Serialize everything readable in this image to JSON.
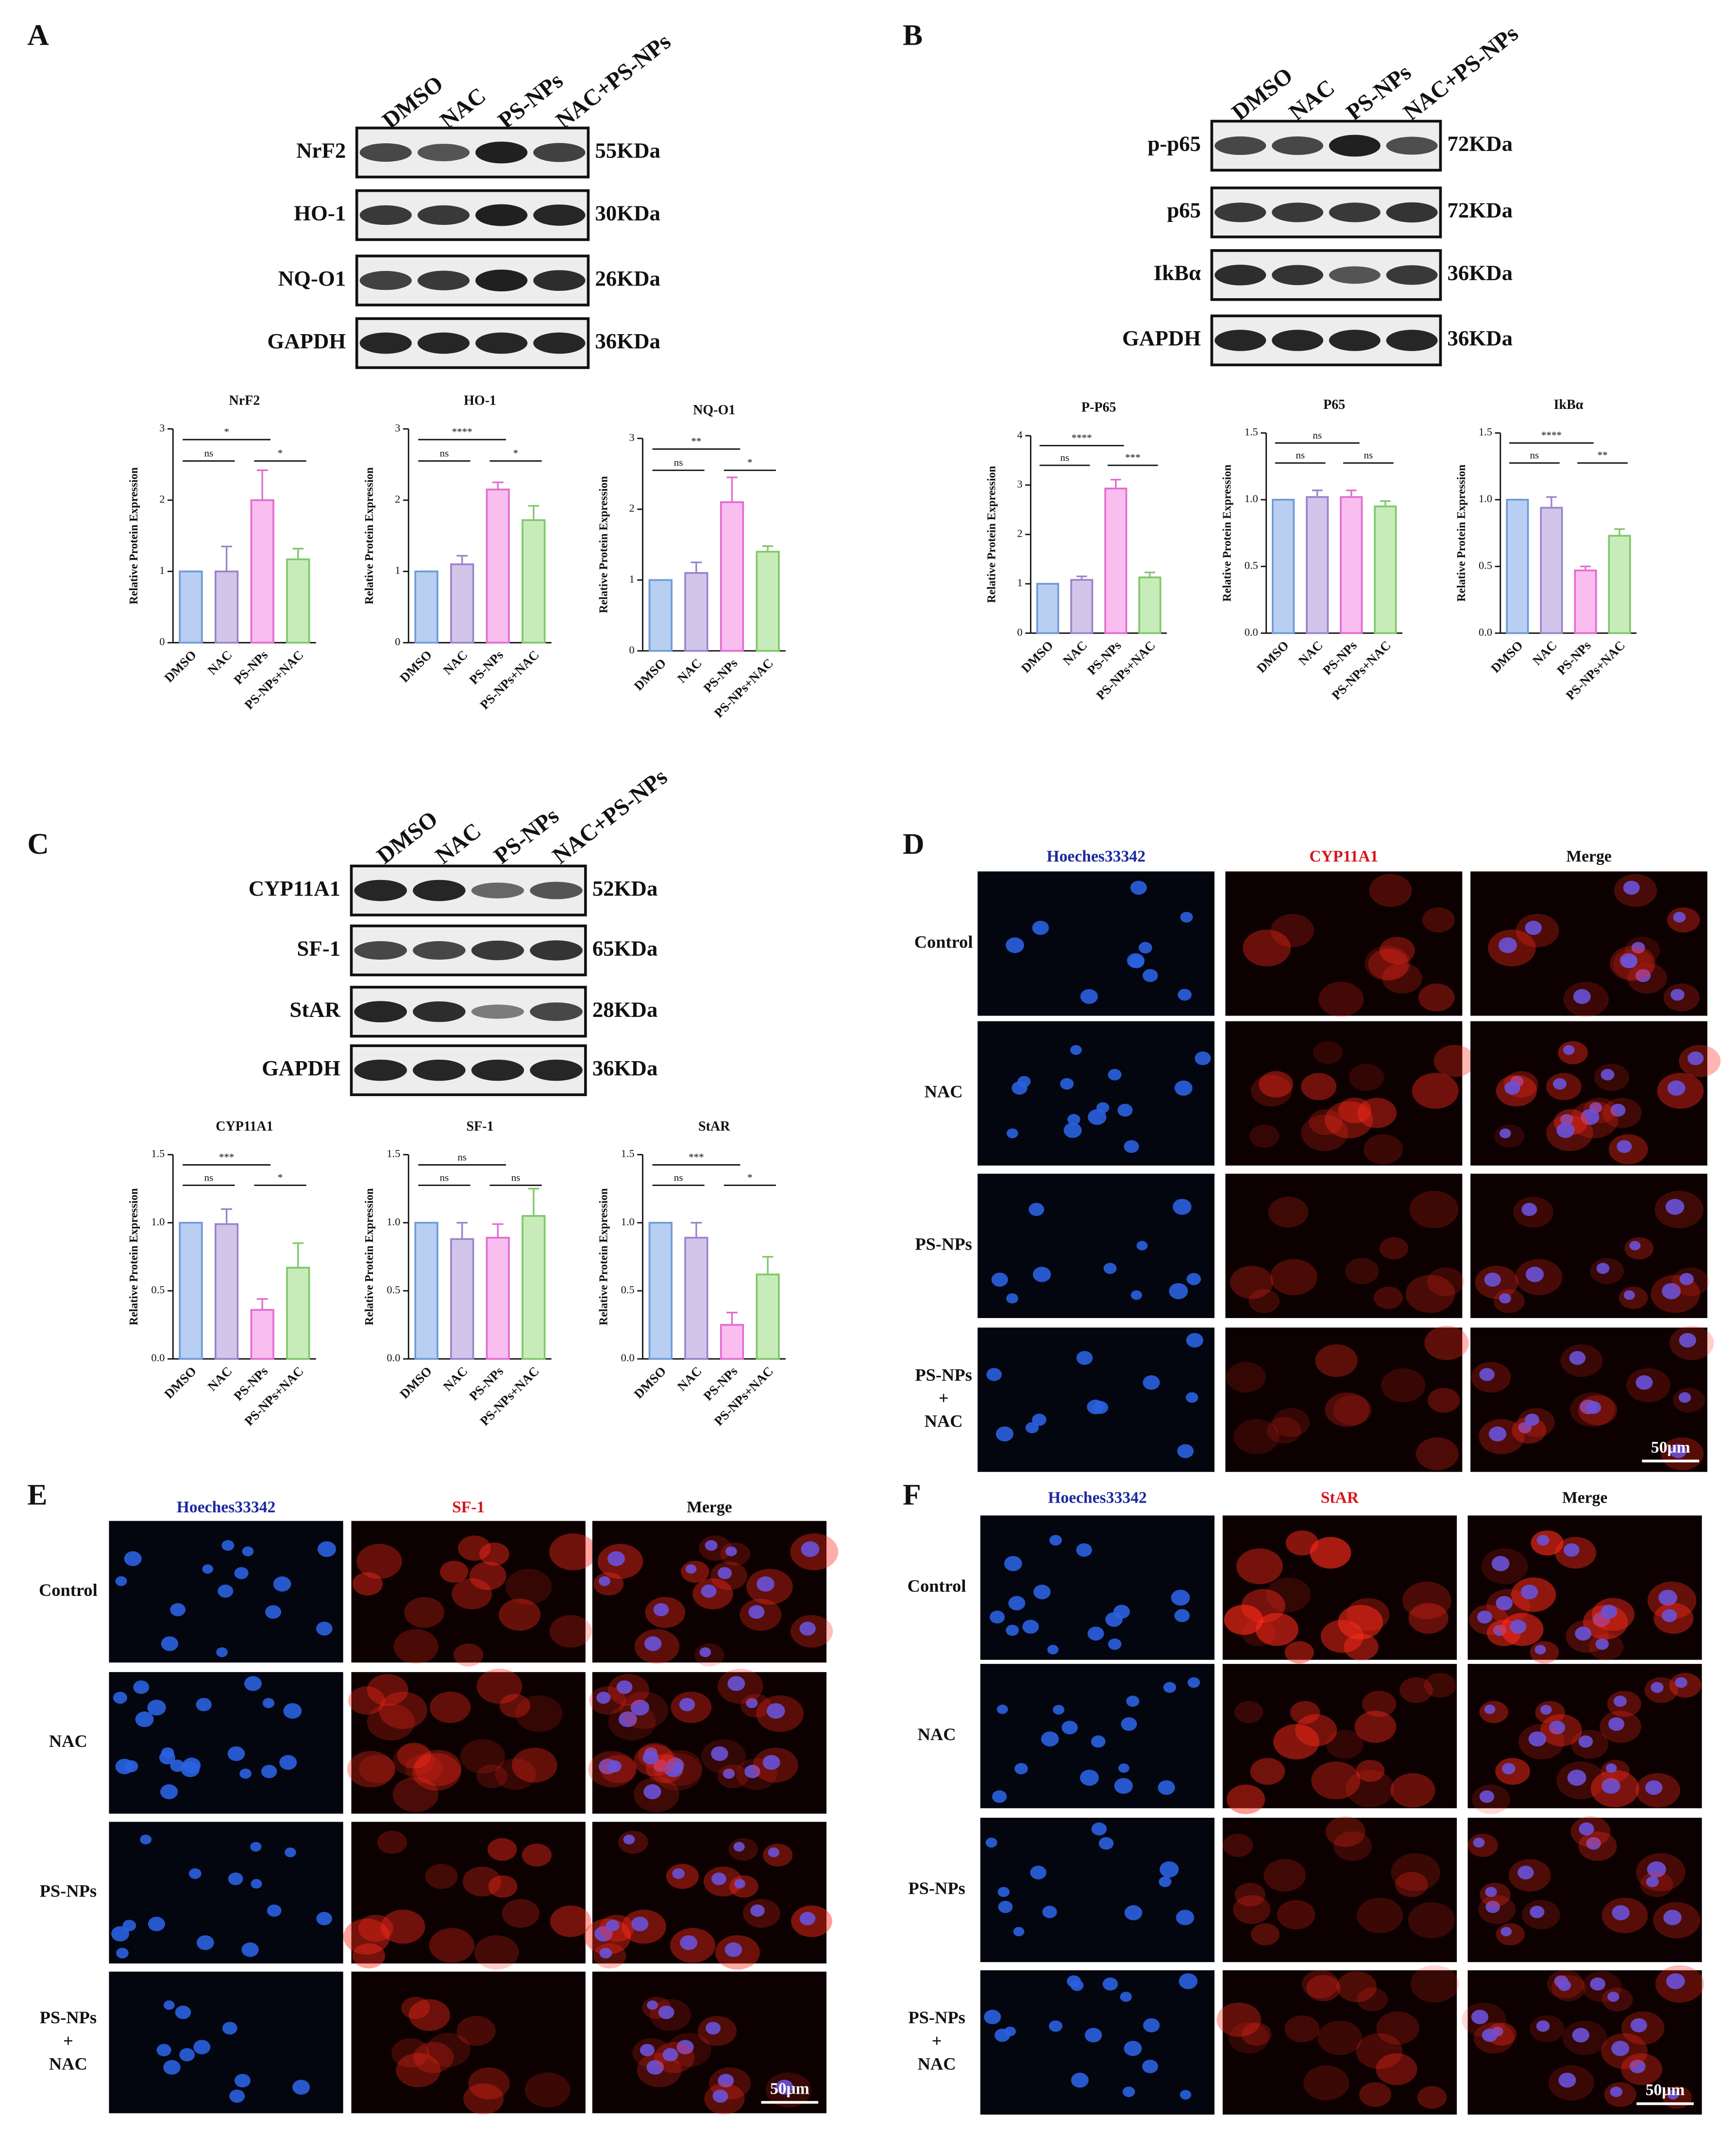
{
  "panel_labels": [
    "A",
    "B",
    "C",
    "D",
    "E",
    "F"
  ],
  "blots": [
    {
      "lanes": [
        "DMSO",
        "NAC",
        "PS-NPs",
        "NAC+PS-NPs"
      ],
      "rows": [
        {
          "protein": "NrF2",
          "size": "55KDa"
        },
        {
          "protein": "HO-1",
          "size": "30KDa"
        },
        {
          "protein": "NQ-O1",
          "size": "26KDa"
        },
        {
          "protein": "GAPDH",
          "size": "36KDa"
        }
      ]
    },
    {
      "lanes": [
        "DMSO",
        "NAC",
        "PS-NPs",
        "NAC+PS-NPs"
      ],
      "rows": [
        {
          "protein": "p-p65",
          "size": "72KDa"
        },
        {
          "protein": "p65",
          "size": "72KDa"
        },
        {
          "protein": "IkBα",
          "size": "36KDa"
        },
        {
          "protein": "GAPDH",
          "size": "36KDa"
        }
      ]
    },
    {
      "lanes": [
        "DMSO",
        "NAC",
        "PS-NPs",
        "NAC+PS-NPs"
      ],
      "rows": [
        {
          "protein": "CYP11A1",
          "size": "52KDa"
        },
        {
          "protein": "SF-1",
          "size": "65KDa"
        },
        {
          "protein": "StAR",
          "size": "28KDa"
        },
        {
          "protein": "GAPDH",
          "size": "36KDa"
        }
      ]
    }
  ],
  "chart_data": [
    {
      "type": "bar",
      "title": "NrF2",
      "y_label": "Relative Protein Expression",
      "categories": [
        "DMSO",
        "NAC",
        "PS-NPs",
        "PS-NPs+NAC"
      ],
      "values": [
        1,
        1.0,
        2.0,
        1.17
      ],
      "errors": [
        0,
        0.35,
        0.42,
        0.15
      ],
      "ylim": [
        0,
        3
      ],
      "yticks": [
        0,
        1,
        2,
        3
      ],
      "colors": [
        "#b9cff2",
        "#d2c5ea",
        "#f9bdef",
        "#c8ecb9"
      ],
      "edge_colors": [
        "#6e9ad8",
        "#9a83c9",
        "#e26ccf",
        "#7fc76a"
      ],
      "significance": [
        {
          "label": "ns",
          "groups": [
            "DMSO",
            "NAC"
          ]
        },
        {
          "label": "*",
          "groups": [
            "DMSO",
            "PS-NPs"
          ]
        },
        {
          "label": "*",
          "groups": [
            "PS-NPs",
            "PS-NPs+NAC"
          ]
        }
      ]
    },
    {
      "type": "bar",
      "title": "HO-1",
      "y_label": "Relative Protein Expression",
      "categories": [
        "DMSO",
        "NAC",
        "PS-NPs",
        "PS-NPs+NAC"
      ],
      "values": [
        1,
        1.1,
        2.15,
        1.72
      ],
      "errors": [
        0,
        0.12,
        0.1,
        0.2
      ],
      "ylim": [
        0,
        3
      ],
      "yticks": [
        0,
        1,
        2,
        3
      ],
      "colors": [
        "#b9cff2",
        "#d2c5ea",
        "#f9bdef",
        "#c8ecb9"
      ],
      "edge_colors": [
        "#6e9ad8",
        "#9a83c9",
        "#e26ccf",
        "#7fc76a"
      ],
      "significance": [
        {
          "label": "ns",
          "groups": [
            "DMSO",
            "NAC"
          ]
        },
        {
          "label": "****",
          "groups": [
            "DMSO",
            "PS-NPs"
          ]
        },
        {
          "label": "*",
          "groups": [
            "PS-NPs",
            "PS-NPs+NAC"
          ]
        }
      ]
    },
    {
      "type": "bar",
      "title": "NQ-O1",
      "y_label": "Relative Protein Expression",
      "categories": [
        "DMSO",
        "NAC",
        "PS-NPs",
        "PS-NPs+NAC"
      ],
      "values": [
        1,
        1.1,
        2.1,
        1.4
      ],
      "errors": [
        0,
        0.15,
        0.35,
        0.08
      ],
      "ylim": [
        0,
        3
      ],
      "yticks": [
        0,
        1,
        2,
        3
      ],
      "colors": [
        "#b9cff2",
        "#d2c5ea",
        "#f9bdef",
        "#c8ecb9"
      ],
      "edge_colors": [
        "#6e9ad8",
        "#9a83c9",
        "#e26ccf",
        "#7fc76a"
      ],
      "significance": [
        {
          "label": "ns",
          "groups": [
            "DMSO",
            "NAC"
          ]
        },
        {
          "label": "**",
          "groups": [
            "DMSO",
            "PS-NPs"
          ]
        },
        {
          "label": "*",
          "groups": [
            "PS-NPs",
            "PS-NPs+NAC"
          ]
        }
      ]
    },
    {
      "type": "bar",
      "title": "P-P65",
      "y_label": "Relative Protein Expression",
      "categories": [
        "DMSO",
        "NAC",
        "PS-NPs",
        "PS-NPs+NAC"
      ],
      "values": [
        1,
        1.08,
        2.93,
        1.13
      ],
      "errors": [
        0,
        0.07,
        0.18,
        0.1
      ],
      "ylim": [
        0,
        4
      ],
      "yticks": [
        0,
        1,
        2,
        3,
        4
      ],
      "colors": [
        "#b9cff2",
        "#d2c5ea",
        "#f9bdef",
        "#c8ecb9"
      ],
      "edge_colors": [
        "#6e9ad8",
        "#9a83c9",
        "#e26ccf",
        "#7fc76a"
      ],
      "significance": [
        {
          "label": "ns",
          "groups": [
            "DMSO",
            "NAC"
          ]
        },
        {
          "label": "****",
          "groups": [
            "DMSO",
            "PS-NPs"
          ]
        },
        {
          "label": "***",
          "groups": [
            "PS-NPs",
            "PS-NPs+NAC"
          ]
        }
      ]
    },
    {
      "type": "bar",
      "title": "P65",
      "y_label": "Relative Protein Expression",
      "categories": [
        "DMSO",
        "NAC",
        "PS-NPs",
        "PS-NPs+NAC"
      ],
      "values": [
        1.0,
        1.02,
        1.02,
        0.95
      ],
      "errors": [
        0,
        0.05,
        0.05,
        0.04
      ],
      "ylim": [
        0,
        1.5
      ],
      "yticks": [
        {
          "value": 0,
          "label": "0.0"
        },
        {
          "value": 0.5,
          "label": "0.5"
        },
        {
          "value": 1,
          "label": "1.0"
        },
        {
          "value": 1.5,
          "label": "1.5"
        }
      ],
      "colors": [
        "#b9cff2",
        "#d2c5ea",
        "#f9bdef",
        "#c8ecb9"
      ],
      "edge_colors": [
        "#6e9ad8",
        "#9a83c9",
        "#e26ccf",
        "#7fc76a"
      ],
      "significance": [
        {
          "label": "ns",
          "groups": [
            "DMSO",
            "NAC"
          ]
        },
        {
          "label": "ns",
          "groups": [
            "DMSO",
            "PS-NPs"
          ]
        },
        {
          "label": "ns",
          "groups": [
            "PS-NPs",
            "PS-NPs+NAC"
          ]
        }
      ]
    },
    {
      "type": "bar",
      "title": "IkBα",
      "y_label": "Relative Protein Expression",
      "categories": [
        "DMSO",
        "NAC",
        "PS-NPs",
        "PS-NPs+NAC"
      ],
      "values": [
        1.0,
        0.94,
        0.47,
        0.73
      ],
      "errors": [
        0,
        0.08,
        0.03,
        0.05
      ],
      "ylim": [
        0,
        1.5
      ],
      "yticks": [
        {
          "value": 0,
          "label": "0.0"
        },
        {
          "value": 0.5,
          "label": "0.5"
        },
        {
          "value": 1,
          "label": "1.0"
        },
        {
          "value": 1.5,
          "label": "1.5"
        }
      ],
      "colors": [
        "#b9cff2",
        "#d2c5ea",
        "#f9bdef",
        "#c8ecb9"
      ],
      "edge_colors": [
        "#6e9ad8",
        "#9a83c9",
        "#e26ccf",
        "#7fc76a"
      ],
      "significance": [
        {
          "label": "ns",
          "groups": [
            "DMSO",
            "NAC"
          ]
        },
        {
          "label": "****",
          "groups": [
            "DMSO",
            "PS-NPs"
          ]
        },
        {
          "label": "**",
          "groups": [
            "PS-NPs",
            "PS-NPs+NAC"
          ]
        }
      ]
    },
    {
      "type": "bar",
      "title": "CYP11A1",
      "y_label": "Relative Protein Expression",
      "categories": [
        "DMSO",
        "NAC",
        "PS-NPs",
        "PS-NPs+NAC"
      ],
      "values": [
        1.0,
        0.99,
        0.36,
        0.67
      ],
      "errors": [
        0,
        0.11,
        0.08,
        0.18
      ],
      "ylim": [
        0,
        1.5
      ],
      "yticks": [
        {
          "value": 0,
          "label": "0.0"
        },
        {
          "value": 0.5,
          "label": "0.5"
        },
        {
          "value": 1,
          "label": "1.0"
        },
        {
          "value": 1.5,
          "label": "1.5"
        }
      ],
      "colors": [
        "#b9cff2",
        "#d2c5ea",
        "#f9bdef",
        "#c8ecb9"
      ],
      "edge_colors": [
        "#6e9ad8",
        "#9a83c9",
        "#e26ccf",
        "#7fc76a"
      ],
      "significance": [
        {
          "label": "ns",
          "groups": [
            "DMSO",
            "NAC"
          ]
        },
        {
          "label": "***",
          "groups": [
            "DMSO",
            "PS-NPs"
          ]
        },
        {
          "label": "*",
          "groups": [
            "PS-NPs",
            "PS-NPs+NAC"
          ]
        }
      ]
    },
    {
      "type": "bar",
      "title": "SF-1",
      "y_label": "Relative Protein Expression",
      "categories": [
        "DMSO",
        "NAC",
        "PS-NPs",
        "PS-NPs+NAC"
      ],
      "values": [
        1.0,
        0.88,
        0.89,
        1.05
      ],
      "errors": [
        0,
        0.12,
        0.1,
        0.2
      ],
      "ylim": [
        0,
        1.5
      ],
      "yticks": [
        {
          "value": 0,
          "label": "0.0"
        },
        {
          "value": 0.5,
          "label": "0.5"
        },
        {
          "value": 1,
          "label": "1.0"
        },
        {
          "value": 1.5,
          "label": "1.5"
        }
      ],
      "colors": [
        "#b9cff2",
        "#d2c5ea",
        "#f9bdef",
        "#c8ecb9"
      ],
      "edge_colors": [
        "#6e9ad8",
        "#9a83c9",
        "#e26ccf",
        "#7fc76a"
      ],
      "significance": [
        {
          "label": "ns",
          "groups": [
            "DMSO",
            "NAC"
          ]
        },
        {
          "label": "ns",
          "groups": [
            "DMSO",
            "PS-NPs"
          ]
        },
        {
          "label": "ns",
          "groups": [
            "PS-NPs",
            "PS-NPs+NAC"
          ]
        }
      ]
    },
    {
      "type": "bar",
      "title": "StAR",
      "y_label": "Relative Protein Expression",
      "categories": [
        "DMSO",
        "NAC",
        "PS-NPs",
        "PS-NPs+NAC"
      ],
      "values": [
        1.0,
        0.89,
        0.25,
        0.62
      ],
      "errors": [
        0,
        0.11,
        0.09,
        0.13
      ],
      "ylim": [
        0,
        1.5
      ],
      "yticks": [
        {
          "value": 0,
          "label": "0.0"
        },
        {
          "value": 0.5,
          "label": "0.5"
        },
        {
          "value": 1,
          "label": "1.0"
        },
        {
          "value": 1.5,
          "label": "1.5"
        }
      ],
      "colors": [
        "#b9cff2",
        "#d2c5ea",
        "#f9bdef",
        "#c8ecb9"
      ],
      "edge_colors": [
        "#6e9ad8",
        "#9a83c9",
        "#e26ccf",
        "#7fc76a"
      ],
      "significance": [
        {
          "label": "ns",
          "groups": [
            "DMSO",
            "NAC"
          ]
        },
        {
          "label": "***",
          "groups": [
            "DMSO",
            "PS-NPs"
          ]
        },
        {
          "label": "*",
          "groups": [
            "PS-NPs",
            "PS-NPs+NAC"
          ]
        }
      ]
    }
  ],
  "microscopy": [
    {
      "channels": [
        "Hoeches33342",
        "CYP11A1",
        "Merge"
      ],
      "rows": [
        [
          "Control"
        ],
        [
          "NAC"
        ],
        [
          "PS-NPs"
        ],
        [
          "PS-NPs",
          "+",
          "NAC"
        ]
      ],
      "scale_bar": "50μm"
    },
    {
      "channels": [
        "Hoeches33342",
        "SF-1",
        "Merge"
      ],
      "rows": [
        [
          "Control"
        ],
        [
          "NAC"
        ],
        [
          "PS-NPs"
        ],
        [
          "PS-NPs",
          "+",
          "NAC"
        ]
      ],
      "scale_bar": "50μm"
    },
    {
      "channels": [
        "Hoeches33342",
        "StAR",
        "Merge"
      ],
      "rows": [
        [
          "Control"
        ],
        [
          "NAC"
        ],
        [
          "PS-NPs"
        ],
        [
          "PS-NPs",
          "+",
          "NAC"
        ]
      ],
      "scale_bar": "50μm"
    }
  ]
}
